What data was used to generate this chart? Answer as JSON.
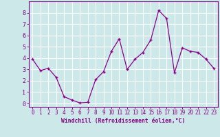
{
  "x": [
    0,
    1,
    2,
    3,
    4,
    5,
    6,
    7,
    8,
    9,
    10,
    11,
    12,
    13,
    14,
    15,
    16,
    17,
    18,
    19,
    20,
    21,
    22,
    23
  ],
  "y": [
    3.9,
    2.9,
    3.1,
    2.3,
    0.6,
    0.3,
    0.05,
    0.1,
    2.1,
    2.8,
    4.6,
    5.7,
    3.0,
    3.9,
    4.5,
    5.6,
    8.2,
    7.5,
    2.7,
    4.9,
    4.6,
    4.5,
    3.9,
    3.1
  ],
  "line_color": "#8B008B",
  "marker": "+",
  "marker_size": 3,
  "marker_lw": 1.0,
  "line_width": 0.9,
  "xlabel": "Windchill (Refroidissement éolien,°C)",
  "ylabel": "",
  "xlim": [
    -0.5,
    23.5
  ],
  "ylim": [
    -0.3,
    9.0
  ],
  "yticks": [
    0,
    1,
    2,
    3,
    4,
    5,
    6,
    7,
    8
  ],
  "xticks": [
    0,
    1,
    2,
    3,
    4,
    5,
    6,
    7,
    8,
    9,
    10,
    11,
    12,
    13,
    14,
    15,
    16,
    17,
    18,
    19,
    20,
    21,
    22,
    23
  ],
  "bg_color": "#cce8e8",
  "grid_color": "#ffffff",
  "border_color": "#800080",
  "tick_color": "#800080",
  "label_color": "#800080",
  "xlabel_fontsize": 5.8,
  "tick_fontsize": 5.5,
  "tick_fontsize_y": 6.0
}
